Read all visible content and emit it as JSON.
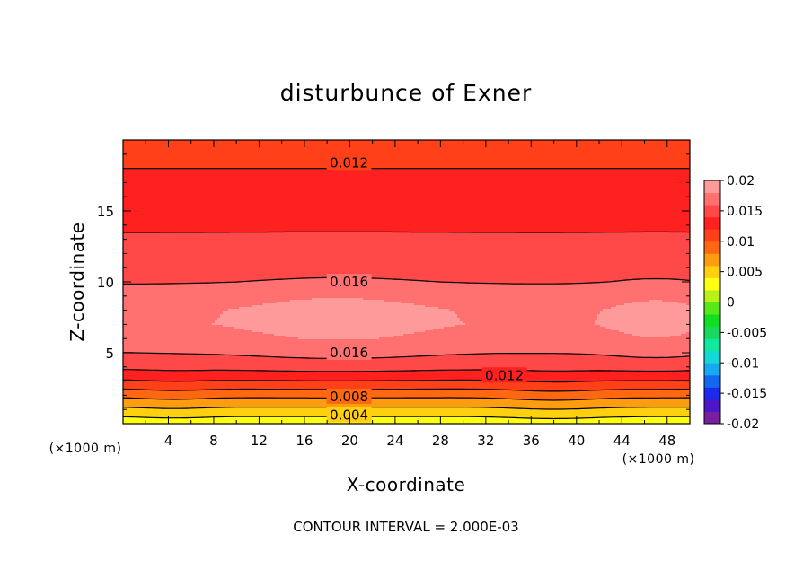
{
  "chart_data": {
    "type": "heatmap",
    "title": "disturbunce of Exner",
    "xlabel": "X-coordinate",
    "ylabel": "Z-coordinate",
    "x_unit": "(×1000 m)",
    "y_unit": "(×1000 m)",
    "xlim": [
      0,
      50
    ],
    "ylim": [
      0,
      20
    ],
    "x_ticks": [
      4,
      8,
      12,
      16,
      20,
      24,
      28,
      32,
      36,
      40,
      44,
      48
    ],
    "y_ticks": [
      5,
      10,
      15
    ],
    "footer": "CONTOUR INTERVAL = 2.000E-03",
    "contour_interval": 0.002,
    "colorbar": {
      "range": [
        -0.02,
        0.02
      ],
      "tick_labels": [
        "0.02",
        "0.015",
        "0.01",
        "0.005",
        "0",
        "-0.005",
        "-0.01",
        "-0.015",
        "-0.02"
      ],
      "tick_values": [
        0.02,
        0.015,
        0.01,
        0.005,
        0,
        -0.005,
        -0.01,
        -0.015,
        -0.02
      ],
      "colors": [
        "#7a1fa0",
        "#4a16c8",
        "#1c2bea",
        "#1468f0",
        "#18a8f0",
        "#14d8d8",
        "#10e8a0",
        "#18d860",
        "#10e020",
        "#58e818",
        "#b8f018",
        "#ffff10",
        "#ffd010",
        "#ff9c10",
        "#ff6810",
        "#ff4018",
        "#ff2020",
        "#ff4848",
        "#ff7070",
        "#ff9a9a"
      ]
    },
    "contour_labels": [
      {
        "text": "0.012",
        "x": 17.8,
        "z": 18.4
      },
      {
        "text": "0.016",
        "x": 17.8,
        "z": 10.0
      },
      {
        "text": "0.016",
        "x": 17.8,
        "z": 5.0
      },
      {
        "text": "0.012",
        "x": 31.5,
        "z": 3.4
      },
      {
        "text": "0.008",
        "x": 17.8,
        "z": 1.9
      },
      {
        "text": "0.004",
        "x": 17.8,
        "z": 0.6
      }
    ],
    "profile_z": [
      0,
      0.5,
      1,
      1.5,
      2,
      2.5,
      3,
      3.5,
      4,
      5,
      6,
      7,
      8,
      9,
      10,
      11,
      12,
      13,
      14,
      15,
      16,
      17,
      18,
      19,
      20
    ],
    "profile_values": [
      0.003,
      0.004,
      0.0055,
      0.007,
      0.0085,
      0.0102,
      0.0118,
      0.0133,
      0.0146,
      0.0163,
      0.0175,
      0.0182,
      0.0181,
      0.0174,
      0.016,
      0.0152,
      0.0147,
      0.0142,
      0.0138,
      0.0133,
      0.0128,
      0.0124,
      0.012,
      0.0116,
      0.0113
    ],
    "contour_levels_drawn": [
      0.004,
      0.006,
      0.008,
      0.01,
      0.012,
      0.014,
      0.016
    ]
  }
}
